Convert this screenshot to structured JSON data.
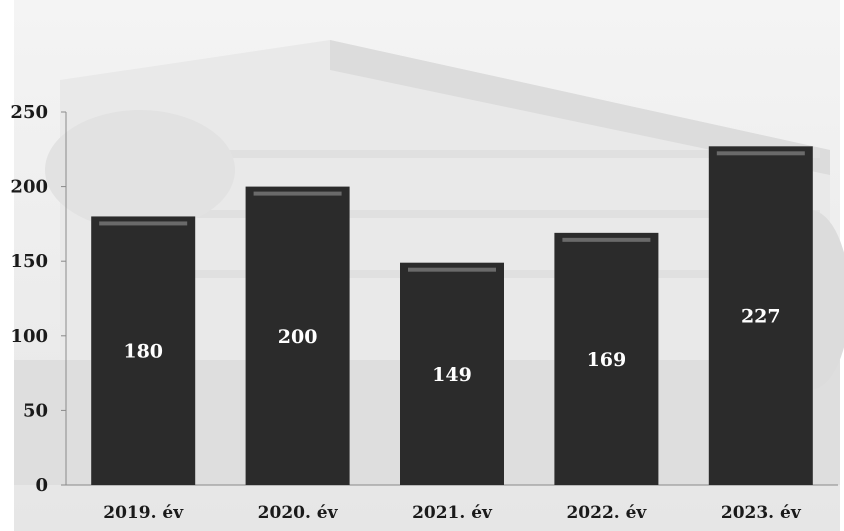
{
  "chart_data": {
    "type": "bar",
    "title": "",
    "categories": [
      "2019. év",
      "2020. év",
      "2021. év",
      "2022. év",
      "2023. év"
    ],
    "values": [
      180,
      200,
      149,
      169,
      227
    ],
    "ylim": [
      0,
      250
    ],
    "yticks": [
      "0",
      "50",
      "100",
      "150",
      "200",
      "250"
    ],
    "xlabel": "",
    "ylabel": "",
    "grid": false,
    "data_labels": [
      "180",
      "200",
      "149",
      "169",
      "227"
    ]
  },
  "colors": {
    "bar": "#2b2b2b",
    "bar_highlight": "#6a6a6a",
    "background_photo": "#d8d8d8",
    "axis": "#8a8a8a"
  }
}
